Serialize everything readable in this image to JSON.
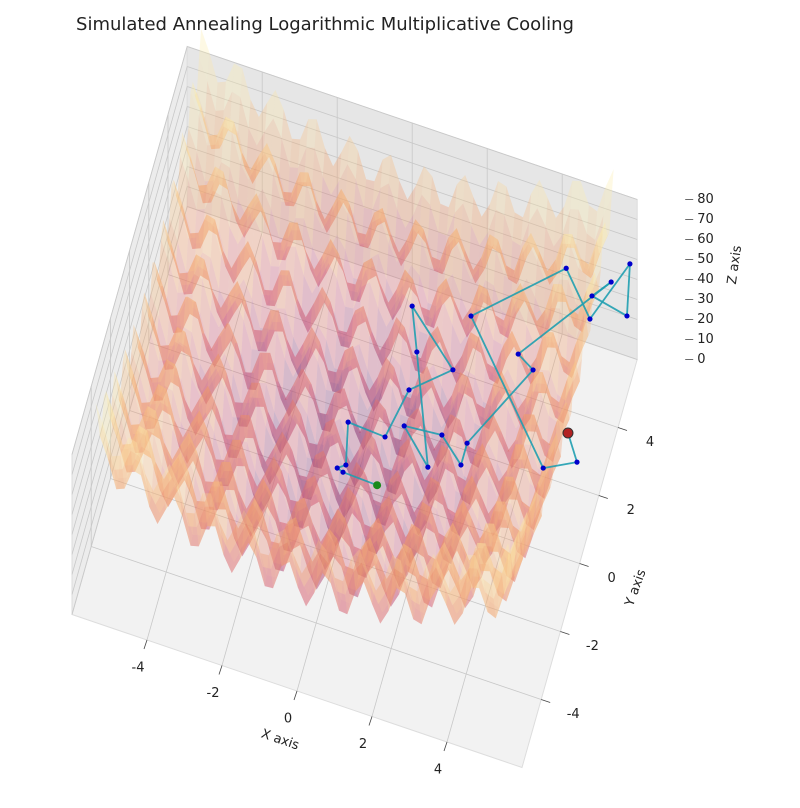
{
  "chart_data": {
    "type": "scatter3d",
    "title": "Simulated Annealing Logarithmic Multiplicative Cooling",
    "x_label": "X axis",
    "y_label": "Y axis",
    "z_label": "Z axis",
    "xlim": [
      -6,
      6
    ],
    "ylim": [
      -6,
      6
    ],
    "zlim": [
      0,
      80
    ],
    "xticks": [
      -4,
      -2,
      0,
      2,
      4
    ],
    "yticks": [
      -4,
      -2,
      0,
      2,
      4
    ],
    "zticks": [
      0,
      10,
      20,
      30,
      40,
      50,
      60,
      70,
      80
    ],
    "grid": true,
    "path_color": "#1f9fb0",
    "point_color": "#0000cc",
    "start_color": "#b22222",
    "end_color": "#1a8a1a",
    "path": {
      "x": [
        5.37,
        5.79,
        4.94,
        2.07,
        4.47,
        5.19,
        5.99,
        6.07,
        5.15,
        5.59,
        3.48,
        3.95,
        2.78,
        2.78,
        2.11,
        1.13,
        1.99,
        0.93,
        0.57,
        1.93,
        1.0,
        0.74,
        -0.26,
        -0.02,
        -0.21,
        -0.04,
        0.81
      ],
      "y": [
        1.25,
        0.55,
        0.35,
        4.04,
        4.58,
        4.24,
        5.28,
        4.66,
        4.61,
        4.89,
        3.45,
        3.16,
        0.86,
        0.22,
        0.85,
        0.75,
        -0.14,
        2.85,
        3.77,
        2.7,
        1.76,
        0.28,
        0.34,
        -0.83,
        -0.99,
        -1.05,
        -0.82
      ],
      "z": [
        40,
        40,
        35,
        30,
        60,
        45,
        60,
        45,
        50,
        55,
        30,
        30,
        25,
        25,
        25,
        25,
        25,
        25,
        30,
        25,
        25,
        25,
        25,
        25,
        25,
        25,
        20
      ]
    }
  }
}
